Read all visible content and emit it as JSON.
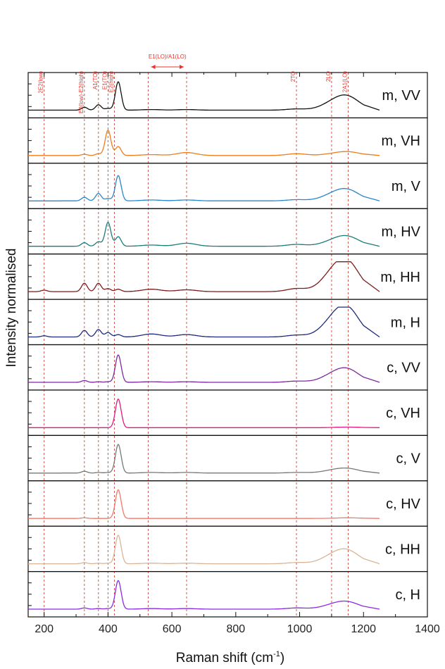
{
  "chart_data": {
    "type": "line",
    "stacked_panels": true,
    "xlabel": "Raman shift (cm",
    "xlabel_superscript": "-1",
    "xlabel_close": ")",
    "ylabel": "Intensity normalised",
    "xlim": [
      150,
      1400
    ],
    "x_ticks": [
      200,
      400,
      600,
      800,
      1000,
      1200,
      1400
    ],
    "x_tick_labels": [
      "200",
      "400",
      "600",
      "800",
      "1000",
      "1200",
      "1400"
    ],
    "grid": false,
    "reference_lines": [
      {
        "label": "2E2(low)",
        "x": 200
      },
      {
        "label": "E2(low)-E2(high)",
        "x": 326
      },
      {
        "label": "A1(TO)",
        "x": 370
      },
      {
        "label": "E1(TO)",
        "x": 400
      },
      {
        "label": "E2(high)",
        "x": 420
      },
      {
        "label": "",
        "x": 526
      },
      {
        "label": "",
        "x": 646
      },
      {
        "label": "2TO",
        "x": 990
      },
      {
        "label": "2LO",
        "x": 1100
      },
      {
        "label": "2A1(LO)",
        "x": 1152
      }
    ],
    "range_annotation": {
      "label": "E1(LO)/A1(LO)",
      "x_from": 526,
      "x_to": 646
    },
    "peak_positions": [
      200,
      326,
      370,
      400,
      432,
      536,
      646,
      990,
      1100,
      1150
    ],
    "series": [
      {
        "name": "m, VV",
        "color": "#111111",
        "values": [
          0.0,
          0.1,
          0.18,
          0.06,
          0.95,
          0.02,
          0.02,
          0.04,
          0.18,
          0.42
        ]
      },
      {
        "name": "m, VH",
        "color": "#ef7d1a",
        "values": [
          0.0,
          0.04,
          0.06,
          0.85,
          0.3,
          0.03,
          0.1,
          0.06,
          0.03,
          0.12
        ]
      },
      {
        "name": "m, V",
        "color": "#2a86c8",
        "values": [
          0.0,
          0.12,
          0.25,
          0.08,
          0.85,
          0.03,
          0.03,
          0.04,
          0.15,
          0.34
        ]
      },
      {
        "name": "m, HV",
        "color": "#197d78",
        "values": [
          0.0,
          0.12,
          0.15,
          0.8,
          0.32,
          0.04,
          0.1,
          0.06,
          0.12,
          0.3
        ]
      },
      {
        "name": "m, HH",
        "color": "#7d1a1a",
        "values": [
          0.05,
          0.28,
          0.28,
          0.1,
          0.08,
          0.08,
          0.06,
          0.1,
          0.45,
          0.9
        ]
      },
      {
        "name": "m, H",
        "color": "#1f2a7d",
        "values": [
          0.04,
          0.22,
          0.25,
          0.15,
          0.08,
          0.1,
          0.08,
          0.06,
          0.4,
          0.88
        ]
      },
      {
        "name": "c, VV",
        "color": "#7d2aa0",
        "values": [
          0.0,
          0.06,
          0.02,
          0.02,
          0.92,
          0.02,
          0.02,
          0.04,
          0.18,
          0.4
        ]
      },
      {
        "name": "c, VH",
        "color": "#e21a7d",
        "values": [
          0.0,
          0.0,
          0.0,
          0.0,
          0.96,
          0.0,
          0.0,
          0.0,
          0.0,
          0.02
        ]
      },
      {
        "name": "c, V",
        "color": "#777777",
        "values": [
          0.0,
          0.06,
          0.02,
          0.02,
          0.96,
          0.02,
          0.02,
          0.02,
          0.06,
          0.14
        ]
      },
      {
        "name": "c, HV",
        "color": "#f07a6a",
        "values": [
          0.0,
          0.02,
          0.0,
          0.0,
          0.96,
          0.0,
          0.0,
          0.0,
          0.0,
          0.02
        ]
      },
      {
        "name": "c, HH",
        "color": "#d9b596",
        "values": [
          0.0,
          0.04,
          0.02,
          0.02,
          0.96,
          0.02,
          0.02,
          0.04,
          0.2,
          0.4
        ]
      },
      {
        "name": "c, H",
        "color": "#8a2be2",
        "values": [
          0.0,
          0.04,
          0.02,
          0.02,
          0.96,
          0.02,
          0.02,
          0.04,
          0.1,
          0.22
        ]
      }
    ]
  }
}
